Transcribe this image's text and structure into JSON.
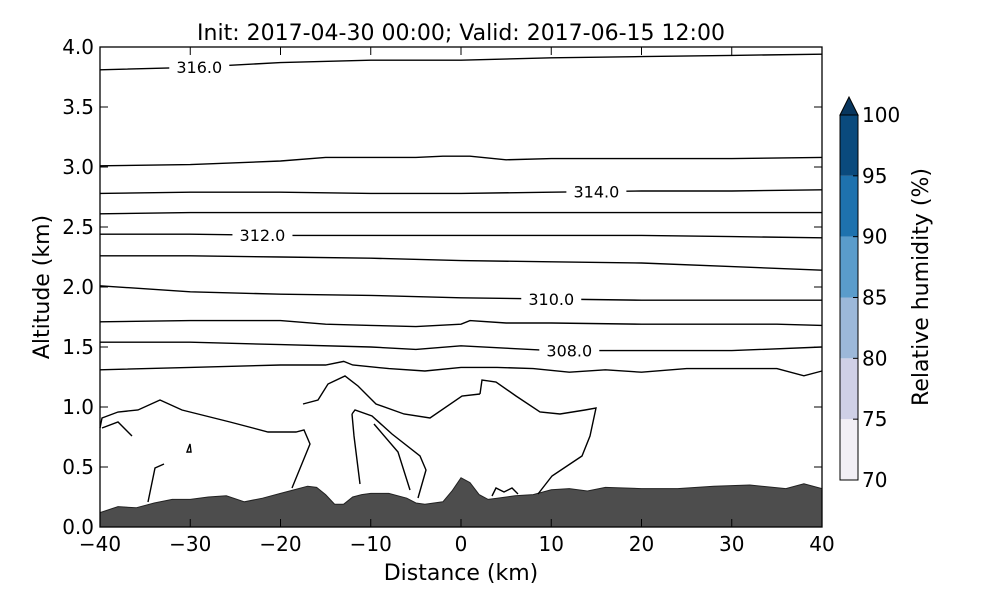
{
  "chart_data": {
    "type": "contour",
    "title": "Init: 2017-04-30 00:00; Valid: 2017-06-15 12:00",
    "xlabel": "Distance (km)",
    "ylabel": "Altitude (km)",
    "xlim": [
      -40,
      40
    ],
    "ylim": [
      0,
      4
    ],
    "xticks": [
      -40,
      -30,
      -20,
      -10,
      0,
      10,
      20,
      30,
      40
    ],
    "xtick_labels": [
      "−40",
      "−30",
      "−20",
      "−10",
      "0",
      "10",
      "20",
      "30",
      "40"
    ],
    "yticks": [
      0.0,
      0.5,
      1.0,
      1.5,
      2.0,
      2.5,
      3.0,
      3.5,
      4.0
    ],
    "ytick_labels": [
      "0.0",
      "0.5",
      "1.0",
      "1.5",
      "2.0",
      "2.5",
      "3.0",
      "3.5",
      "4.0"
    ],
    "grid": false,
    "terrain": {
      "color": "#4d4d4d",
      "x": [
        -40,
        -38,
        -36,
        -34,
        -32,
        -30,
        -28,
        -26,
        -24,
        -22,
        -20,
        -18,
        -17,
        -16,
        -15,
        -14,
        -13,
        -12,
        -11,
        -10,
        -8,
        -6,
        -5,
        -4,
        -2,
        -1,
        0,
        1,
        2,
        3,
        4,
        6,
        8,
        10,
        12,
        14,
        16,
        20,
        24,
        28,
        32,
        36,
        38,
        40
      ],
      "y": [
        0.12,
        0.17,
        0.16,
        0.2,
        0.23,
        0.23,
        0.25,
        0.26,
        0.21,
        0.24,
        0.28,
        0.32,
        0.34,
        0.33,
        0.27,
        0.19,
        0.19,
        0.25,
        0.27,
        0.28,
        0.28,
        0.24,
        0.2,
        0.19,
        0.21,
        0.3,
        0.41,
        0.37,
        0.27,
        0.23,
        0.24,
        0.26,
        0.27,
        0.31,
        0.32,
        0.3,
        0.33,
        0.32,
        0.32,
        0.34,
        0.35,
        0.32,
        0.36,
        0.32
      ]
    },
    "contour_levels": [
      {
        "level": 316.0,
        "label": "316.0",
        "label_x": -29,
        "x": [
          -40,
          -30,
          -20,
          -10,
          0,
          10,
          20,
          30,
          40
        ],
        "y": [
          3.81,
          3.83,
          3.87,
          3.89,
          3.89,
          3.91,
          3.92,
          3.93,
          3.94
        ]
      },
      {
        "level": null,
        "label": "",
        "x": [
          -40,
          -30,
          -20,
          -15,
          -10,
          -5,
          -2,
          1,
          5,
          10,
          20,
          30,
          40
        ],
        "y": [
          3.01,
          3.02,
          3.05,
          3.08,
          3.08,
          3.08,
          3.09,
          3.09,
          3.06,
          3.07,
          3.07,
          3.07,
          3.08
        ]
      },
      {
        "level": 314.0,
        "label": "314.0",
        "label_x": 15,
        "x": [
          -40,
          -30,
          -20,
          -10,
          0,
          10,
          20,
          30,
          40
        ],
        "y": [
          2.78,
          2.79,
          2.79,
          2.78,
          2.78,
          2.79,
          2.8,
          2.8,
          2.81
        ]
      },
      {
        "level": null,
        "label": "",
        "x": [
          -40,
          -30,
          -20,
          -10,
          0,
          10,
          20,
          30,
          40
        ],
        "y": [
          2.61,
          2.62,
          2.62,
          2.62,
          2.62,
          2.62,
          2.62,
          2.62,
          2.62
        ]
      },
      {
        "level": 312.0,
        "label": "312.0",
        "label_x": -22,
        "x": [
          -40,
          -30,
          -20,
          -10,
          0,
          10,
          20,
          30,
          40
        ],
        "y": [
          2.44,
          2.44,
          2.43,
          2.43,
          2.43,
          2.43,
          2.43,
          2.42,
          2.41
        ]
      },
      {
        "level": null,
        "label": "",
        "x": [
          -40,
          -30,
          -20,
          -10,
          0,
          10,
          20,
          30,
          40
        ],
        "y": [
          2.26,
          2.26,
          2.25,
          2.24,
          2.22,
          2.21,
          2.2,
          2.17,
          2.14
        ]
      },
      {
        "level": 310.0,
        "label": "310.0",
        "label_x": 10,
        "x": [
          -40,
          -30,
          -20,
          -10,
          0,
          10,
          20,
          30,
          40
        ],
        "y": [
          2.01,
          1.96,
          1.94,
          1.93,
          1.91,
          1.9,
          1.89,
          1.89,
          1.89
        ]
      },
      {
        "level": null,
        "label": "",
        "x": [
          -40,
          -30,
          -20,
          -15,
          -10,
          -5,
          0,
          1,
          5,
          10,
          20,
          30,
          35,
          40
        ],
        "y": [
          1.71,
          1.72,
          1.72,
          1.69,
          1.68,
          1.67,
          1.69,
          1.72,
          1.7,
          1.7,
          1.69,
          1.69,
          1.69,
          1.68
        ]
      },
      {
        "level": 308.0,
        "label": "308.0",
        "label_x": 12,
        "x": [
          -40,
          -30,
          -20,
          -10,
          -5,
          0,
          5,
          10,
          20,
          30,
          40
        ],
        "y": [
          1.54,
          1.54,
          1.52,
          1.5,
          1.48,
          1.51,
          1.49,
          1.47,
          1.47,
          1.47,
          1.5
        ]
      },
      {
        "level": null,
        "label": "",
        "x": [
          -40,
          -30,
          -20,
          -15,
          -13,
          -12,
          -8,
          -4,
          0,
          4,
          8,
          12,
          16,
          20,
          25,
          30,
          35,
          38,
          40
        ],
        "y": [
          1.31,
          1.33,
          1.35,
          1.35,
          1.38,
          1.35,
          1.32,
          1.3,
          1.33,
          1.33,
          1.32,
          1.29,
          1.31,
          1.29,
          1.32,
          1.32,
          1.32,
          1.26,
          1.3
        ]
      }
    ],
    "colorbar": {
      "label": "Relative humidity (%)",
      "ticks": [
        70,
        75,
        80,
        85,
        90,
        95,
        100
      ],
      "tick_labels": [
        "70",
        "75",
        "80",
        "85",
        "90",
        "95",
        "100"
      ],
      "colors": [
        "#f2eff5",
        "#cfd0e6",
        "#9cb8d9",
        "#5a9ccb",
        "#1e72ae",
        "#0a4a7d"
      ],
      "extend_color": "#08365e",
      "extend": "max"
    }
  }
}
